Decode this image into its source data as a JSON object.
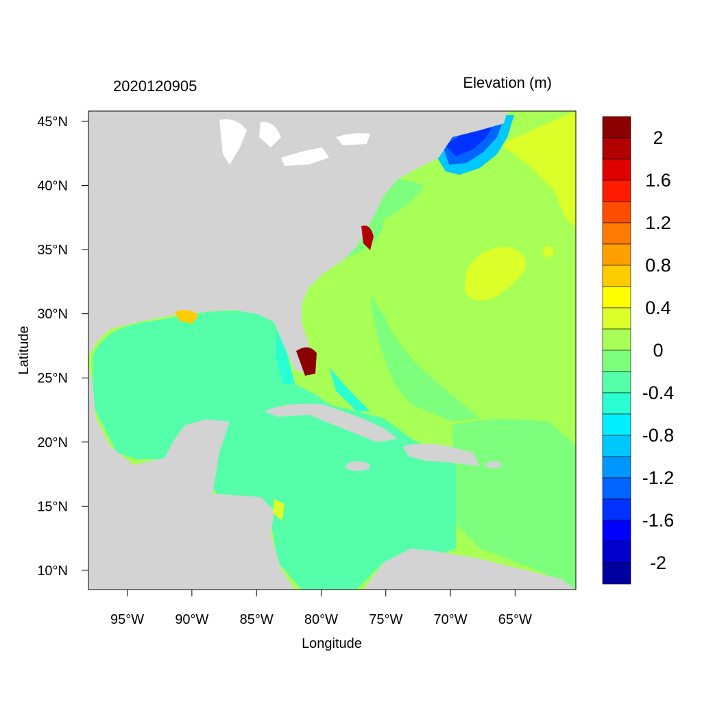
{
  "title_left": "2020120905",
  "title_right": "Elevation (m)",
  "axes": {
    "xlabel": "Longitude",
    "ylabel": "Latitude",
    "x_ticks": [
      "95°W",
      "90°W",
      "85°W",
      "80°W",
      "75°W",
      "70°W",
      "65°W"
    ],
    "y_ticks": [
      "45°N",
      "40°N",
      "35°N",
      "30°N",
      "25°N",
      "20°N",
      "15°N",
      "10°N"
    ],
    "lon_range": [
      -98,
      -60.3
    ],
    "lat_range": [
      8.5,
      45.8
    ]
  },
  "colorbar": {
    "labels": [
      "2",
      "1.6",
      "1.2",
      "0.8",
      "0.4",
      "0",
      "-0.4",
      "-0.8",
      "-1.2",
      "-1.6",
      "-2"
    ],
    "colors": [
      "#8b0000",
      "#b20000",
      "#e00000",
      "#ff1a00",
      "#ff4d00",
      "#ff7a00",
      "#ff9f00",
      "#ffcc00",
      "#ffff00",
      "#dcff2a",
      "#a8ff55",
      "#7dff7d",
      "#55ffaa",
      "#2affd4",
      "#00f0ff",
      "#00c8ff",
      "#0096ff",
      "#0064ff",
      "#0032ff",
      "#0000ff",
      "#0000cc",
      "#0000a0"
    ]
  },
  "map_colors": {
    "land": "#d3d3d3",
    "lakes": "#ffffff",
    "gulf_caribbean": "#55ffaa",
    "atlantic": "#a8ff55",
    "high_atlantic": "#dcff2a",
    "negative": "#0032ff",
    "positive_surge": "#8b0000"
  }
}
